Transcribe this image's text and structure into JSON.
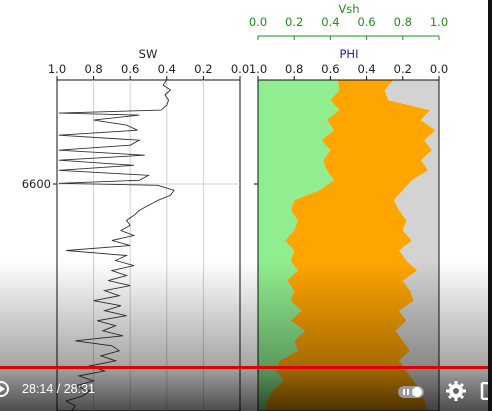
{
  "chart_data": [
    {
      "type": "line",
      "title": "SW",
      "x_ticks": [
        "1.0",
        "0.8",
        "0.6",
        "0.4",
        "0.2",
        "0.0"
      ],
      "xlim": [
        1.0,
        0.0
      ],
      "depth_tick_label": "6600",
      "grid": true,
      "series": [
        {
          "depth": [
            0,
            5,
            10,
            15,
            20,
            25,
            30,
            33,
            35,
            40,
            45,
            50,
            55,
            60,
            65,
            70,
            75,
            80,
            85,
            90,
            95,
            100,
            103,
            105,
            110,
            115,
            120,
            125,
            130,
            135,
            140,
            145,
            150,
            155,
            160,
            165,
            170,
            175,
            180,
            185,
            190,
            195,
            200,
            205,
            210,
            215,
            220,
            225,
            230,
            235,
            240,
            245,
            250,
            255,
            260,
            265,
            270,
            275,
            280,
            285,
            290,
            295,
            300,
            305,
            310,
            315,
            320,
            325,
            330
          ],
          "values": [
            0.4,
            0.42,
            0.38,
            0.41,
            0.39,
            0.4,
            0.43,
            0.99,
            0.55,
            0.8,
            0.62,
            0.56,
            0.99,
            0.55,
            0.6,
            0.99,
            0.52,
            0.99,
            0.58,
            0.99,
            0.5,
            0.55,
            0.99,
            0.45,
            0.36,
            0.38,
            0.45,
            0.5,
            0.55,
            0.58,
            0.62,
            0.6,
            0.65,
            0.58,
            0.7,
            0.6,
            0.95,
            0.62,
            0.68,
            0.58,
            0.7,
            0.62,
            0.72,
            0.6,
            0.74,
            0.66,
            0.8,
            0.65,
            0.74,
            0.62,
            0.78,
            0.68,
            0.75,
            0.64,
            0.9,
            0.7,
            0.66,
            0.76,
            0.68,
            0.82,
            0.74,
            0.88,
            0.8,
            0.9,
            0.82,
            0.86,
            0.95,
            0.9,
            0.92
          ]
        }
      ]
    },
    {
      "type": "area",
      "title": "PHI",
      "secondary_title": "Vsh",
      "x_ticks": [
        "1.0",
        "0.8",
        "0.6",
        "0.4",
        "0.2",
        "0.0"
      ],
      "secondary_ticks": [
        "0.0",
        "0.2",
        "0.4",
        "0.6",
        "0.8",
        "1.0"
      ],
      "xlim": [
        1.0,
        0.0
      ],
      "colors": {
        "phi_fill": "#90ee90",
        "vsh_fill": "#ffa500",
        "matrix_fill": "#d3d3d3",
        "phi_title": "#2222aa",
        "vsh_title": "#228b22"
      },
      "series": [
        {
          "name": "phi_boundary",
          "depth": [
            0,
            10,
            20,
            30,
            40,
            50,
            60,
            70,
            80,
            90,
            100,
            110,
            120,
            130,
            140,
            150,
            160,
            170,
            180,
            190,
            200,
            210,
            220,
            230,
            240,
            250,
            260,
            270,
            280,
            290,
            300,
            310,
            320,
            330
          ],
          "values": [
            0.56,
            0.55,
            0.6,
            0.55,
            0.62,
            0.58,
            0.65,
            0.6,
            0.64,
            0.62,
            0.58,
            0.66,
            0.8,
            0.82,
            0.78,
            0.8,
            0.85,
            0.8,
            0.82,
            0.78,
            0.84,
            0.8,
            0.82,
            0.76,
            0.82,
            0.74,
            0.8,
            0.78,
            0.88,
            0.9,
            0.86,
            0.92,
            0.95,
            0.96
          ]
        },
        {
          "name": "vsh_boundary",
          "depth": [
            0,
            10,
            20,
            30,
            40,
            50,
            60,
            70,
            80,
            90,
            100,
            110,
            120,
            130,
            140,
            150,
            160,
            170,
            180,
            190,
            200,
            210,
            220,
            230,
            240,
            250,
            260,
            270,
            280,
            290,
            300,
            310,
            320,
            330
          ],
          "values": [
            0.25,
            0.3,
            0.28,
            0.05,
            0.1,
            0.02,
            0.08,
            0.04,
            0.1,
            0.06,
            0.15,
            0.2,
            0.25,
            0.22,
            0.18,
            0.2,
            0.15,
            0.22,
            0.18,
            0.12,
            0.2,
            0.16,
            0.14,
            0.22,
            0.18,
            0.24,
            0.2,
            0.16,
            0.22,
            0.18,
            0.14,
            0.1,
            0.08,
            0.06
          ]
        }
      ]
    }
  ],
  "player": {
    "time_display": "28:14 / 28:31",
    "progress": 0.99,
    "icons": {
      "play": "play-icon",
      "captions": "captions-toggle-icon",
      "settings": "gear-icon",
      "fullscreen": "fullscreen-icon"
    }
  }
}
